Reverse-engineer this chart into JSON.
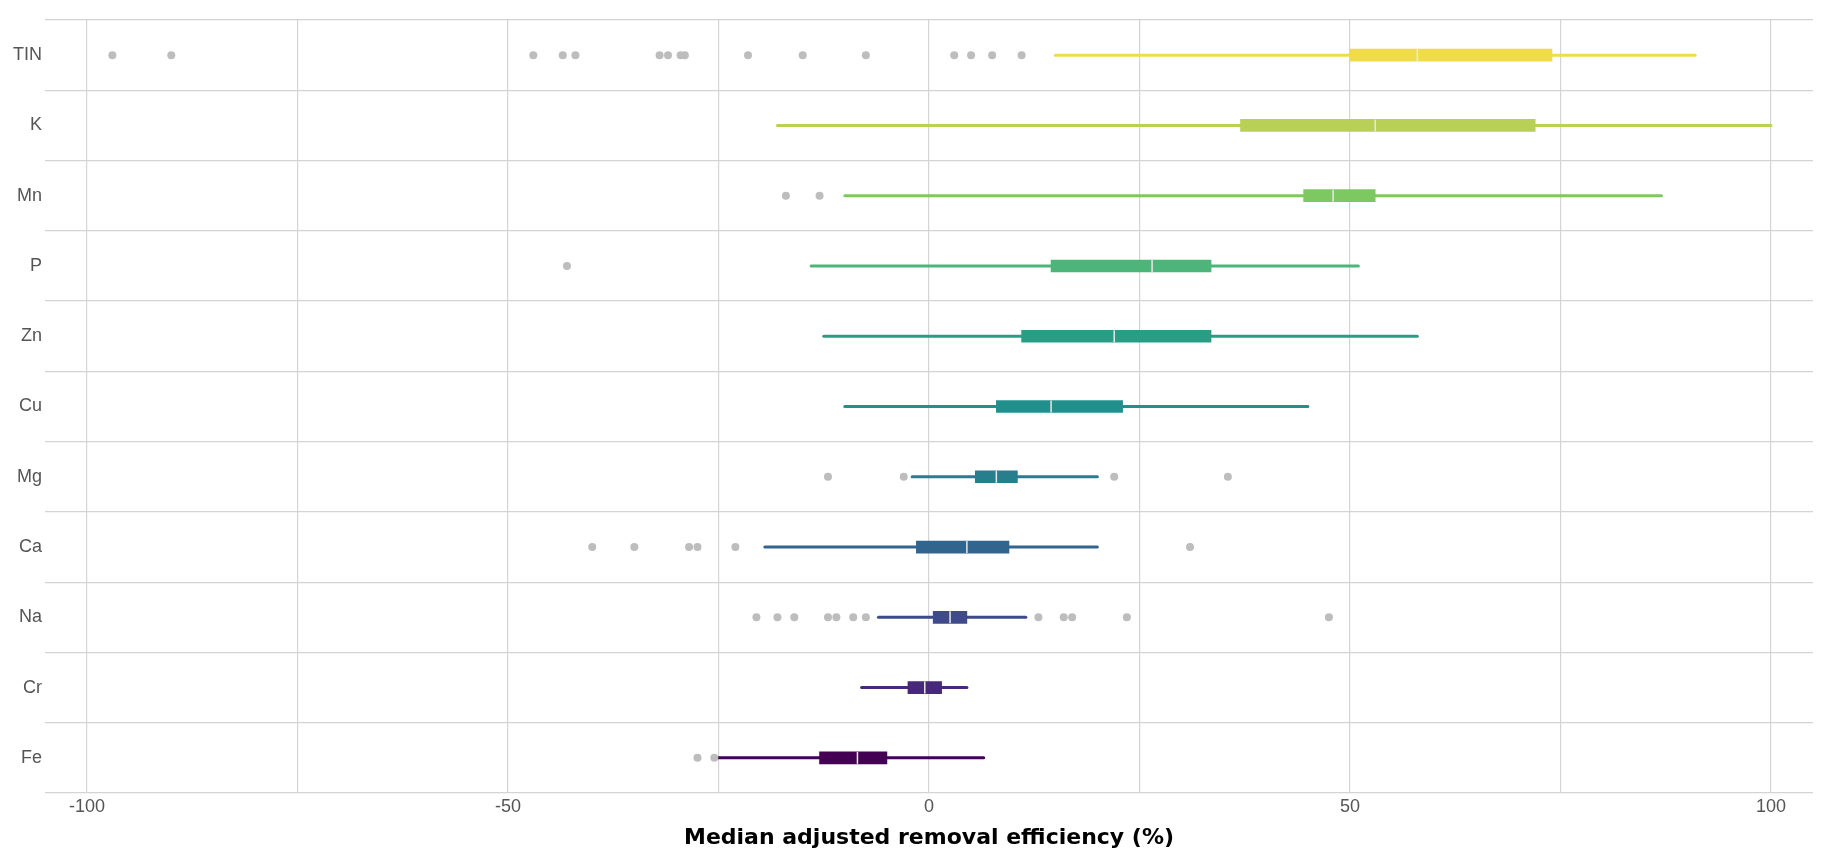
{
  "chart_data": {
    "type": "box",
    "orientation": "horizontal",
    "xlabel": "Median adjusted removal efficiency (%)",
    "categories": [
      "TIN",
      "K",
      "Mn",
      "P",
      "Zn",
      "Cu",
      "Mg",
      "Ca",
      "Na",
      "Cr",
      "Fe"
    ],
    "colors": [
      "#f0dc4a",
      "#b8d056",
      "#7ec862",
      "#4db57a",
      "#2a9e85",
      "#21908d",
      "#277f8e",
      "#32658e",
      "#3e4a89",
      "#482878",
      "#440154"
    ],
    "boxes": [
      {
        "low": 15,
        "q1": 50,
        "median": 58,
        "q3": 74,
        "high": 91,
        "outliers": [
          -97,
          -90,
          -47,
          -43.5,
          -42,
          -32,
          -31,
          -29.5,
          -29,
          -21.5,
          -15,
          -7.5,
          3,
          5,
          7.5,
          11
        ]
      },
      {
        "low": -18,
        "q1": 37,
        "median": 53,
        "q3": 72,
        "high": 100
      },
      {
        "low": -10,
        "q1": 44.5,
        "median": 48,
        "q3": 53,
        "high": 87,
        "outliers": [
          -17,
          -13
        ]
      },
      {
        "low": -14,
        "q1": 14.5,
        "median": 26.5,
        "q3": 33.5,
        "high": 51,
        "outliers": [
          -43
        ]
      },
      {
        "low": -12.5,
        "q1": 11,
        "median": 22,
        "q3": 33.5,
        "high": 58
      },
      {
        "low": -10,
        "q1": 8,
        "median": 14.5,
        "q3": 23,
        "high": 45
      },
      {
        "low": -2,
        "q1": 5.5,
        "median": 8,
        "q3": 10.5,
        "high": 20,
        "outliers": [
          -12,
          -3,
          22,
          35.5
        ]
      },
      {
        "low": -19.5,
        "q1": -1.5,
        "median": 4.5,
        "q3": 9.5,
        "high": 20,
        "outliers": [
          -40,
          -35,
          -28.5,
          -27.5,
          -23,
          31
        ]
      },
      {
        "low": -6,
        "q1": 0.5,
        "median": 2.5,
        "q3": 4.5,
        "high": 11.5,
        "outliers": [
          -20.5,
          -18,
          -16,
          -12,
          -11,
          -9,
          -7.5,
          13,
          16,
          17,
          23.5,
          47.5
        ]
      },
      {
        "low": -8,
        "q1": -2.5,
        "median": -0.5,
        "q3": 1.5,
        "high": 4.5
      },
      {
        "low": -25,
        "q1": -13,
        "median": -8.5,
        "q3": -5,
        "high": 6.5,
        "outliers": [
          -27.5,
          -25.5
        ]
      }
    ],
    "xlim": [
      -105,
      105
    ],
    "xticks": [
      -100,
      {
        "value": -75,
        "label": null
      },
      -50,
      {
        "value": -25,
        "label": null
      },
      0,
      {
        "value": 25,
        "label": null
      },
      50,
      {
        "value": 75,
        "label": null
      },
      100
    ],
    "grid": true,
    "legend": false
  }
}
